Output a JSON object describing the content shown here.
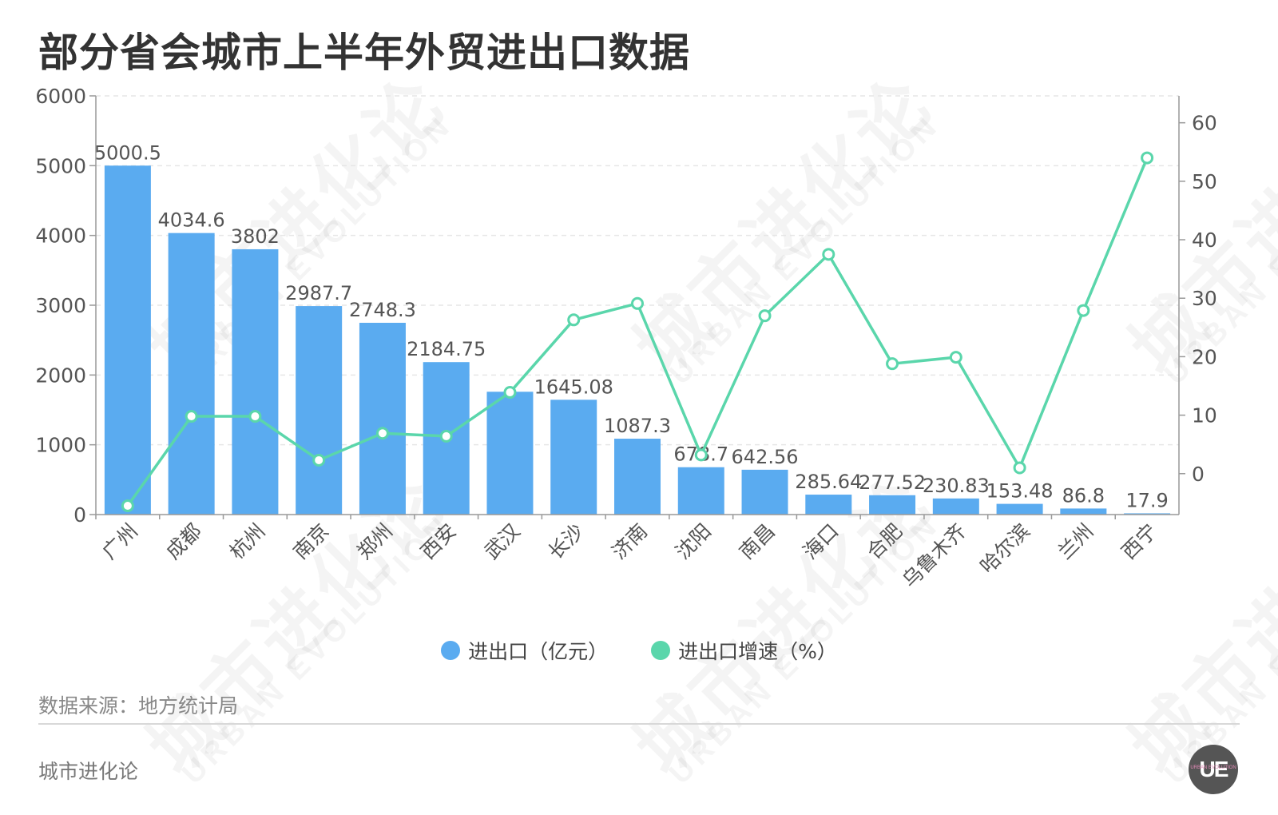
{
  "title": "部分省会城市上半年外贸进出口数据",
  "source": "数据来源：地方统计局",
  "footer_brand": "城市进化论",
  "logo_text": "UE",
  "logo_subtext": "URBAN EVOLUTION",
  "watermark": {
    "cn": "城市进化论",
    "en": "URBAN EVOLUTION"
  },
  "legend": {
    "bar_label": "进出口（亿元）",
    "line_label": "进出口增速（%）"
  },
  "colors": {
    "bar": "#5aabf0",
    "line": "#5ad6ab",
    "grid": "#e6e6e6",
    "axis": "#999999",
    "text": "#555555"
  },
  "chart_data": {
    "type": "bar",
    "title": "部分省会城市上半年外贸进出口数据",
    "categories": [
      "广州",
      "成都",
      "杭州",
      "南京",
      "郑州",
      "西安",
      "武汉",
      "长沙",
      "济南",
      "沈阳",
      "南昌",
      "海口",
      "合肥",
      "乌鲁木齐",
      "哈尔滨",
      "兰州",
      "西宁"
    ],
    "series": [
      {
        "name": "进出口（亿元）",
        "type": "bar",
        "axis": "left",
        "values": [
          5000.5,
          4034.6,
          3802,
          2987.7,
          2748.3,
          2184.75,
          1760,
          1645.08,
          1087.3,
          678.7,
          642.56,
          285.64,
          277.52,
          230.83,
          153.48,
          86.8,
          17.9
        ],
        "labels": [
          "5000.5",
          "4034.6",
          "3802",
          "2987.7",
          "2748.3",
          "2184.75",
          "",
          "1645.08",
          "1087.3",
          "678.7",
          "642.56",
          "285.64",
          "277.52",
          "230.83",
          "153.48",
          "86.8",
          "17.9"
        ]
      },
      {
        "name": "进出口增速（%）",
        "type": "line",
        "axis": "right",
        "values": [
          -5.5,
          9.8,
          9.8,
          2.3,
          6.9,
          6.4,
          13.9,
          26.3,
          29.1,
          3.2,
          27.0,
          37.5,
          18.8,
          19.9,
          1.0,
          27.9,
          54.0
        ]
      }
    ],
    "y_left": {
      "min": 0,
      "max": 6000,
      "ticks": [
        0,
        1000,
        2000,
        3000,
        4000,
        5000,
        6000
      ]
    },
    "y_right": {
      "min": -7,
      "max": 64.6,
      "ticks": [
        0,
        10,
        20,
        30,
        40,
        50,
        60
      ]
    },
    "grid": true,
    "legend_position": "bottom-center"
  }
}
